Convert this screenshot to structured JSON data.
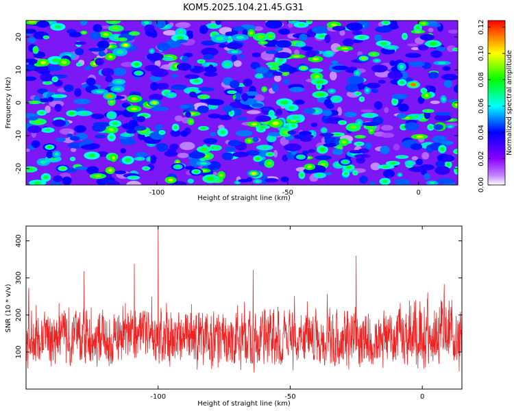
{
  "title": "KOM5.2025.104.21.45.G31",
  "chart_data": [
    {
      "type": "heatmap",
      "title": "",
      "xlabel": "Height of straight line (km)",
      "ylabel": "Frequency (Hz)",
      "xlim": [
        -150,
        15
      ],
      "ylim": [
        -25,
        25
      ],
      "x_ticks": [
        -100,
        -50,
        0
      ],
      "y_ticks": [
        -20,
        -10,
        0,
        10,
        20
      ],
      "colorbar": {
        "label": "Normalized spectral amplitude",
        "range": [
          0,
          0.125
        ],
        "ticks": [
          "0.00",
          "0.02",
          "0.04",
          "0.06",
          "0.08",
          "0.10",
          "0.12"
        ],
        "colormap": [
          "#ffffff",
          "#9a00ff",
          "#0000ff",
          "#00ffff",
          "#00ff00",
          "#ffff00",
          "#ff0000"
        ]
      },
      "hotspots": [
        {
          "x": -2,
          "y": 5.5,
          "value": 0.115
        },
        {
          "x": -118,
          "y": 2,
          "value": 0.11
        },
        {
          "x": -112,
          "y": 17.5,
          "value": 0.1
        },
        {
          "x": -63,
          "y": -21.5,
          "value": 0.1
        },
        {
          "x": -44,
          "y": 10.5,
          "value": 0.09
        },
        {
          "x": -21,
          "y": 13.5,
          "value": 0.09
        },
        {
          "x": -101,
          "y": 0,
          "value": 0.095
        },
        {
          "x": -136,
          "y": -20,
          "value": 0.085
        },
        {
          "x": -141,
          "y": -13.5,
          "value": 0.08
        },
        {
          "x": -85,
          "y": -21,
          "value": 0.08
        },
        {
          "x": -107,
          "y": 9,
          "value": 0.075
        },
        {
          "x": -28,
          "y": -18,
          "value": 0.075
        },
        {
          "x": -92,
          "y": -19.5,
          "value": 0.075
        },
        {
          "x": -45,
          "y": -16.5,
          "value": 0.075
        }
      ]
    },
    {
      "type": "line",
      "title": "",
      "xlabel": "Height of straight line (km)",
      "ylabel": "SNR (10 * v/v)",
      "xlim": [
        -150,
        15
      ],
      "ylim": [
        0,
        440
      ],
      "x_ticks": [
        -100,
        -50,
        0
      ],
      "y_ticks": [
        100,
        200,
        300,
        400
      ],
      "series": [
        {
          "color": "#ee2222",
          "baseline_range": [
            50,
            230
          ],
          "notable_peaks": [
            {
              "x": -100,
              "y": 440
            },
            {
              "x": -25,
              "y": 360
            },
            {
              "x": -109,
              "y": 338
            },
            {
              "x": -64,
              "y": 322
            },
            {
              "x": -128,
              "y": 318
            }
          ]
        }
      ]
    }
  ]
}
